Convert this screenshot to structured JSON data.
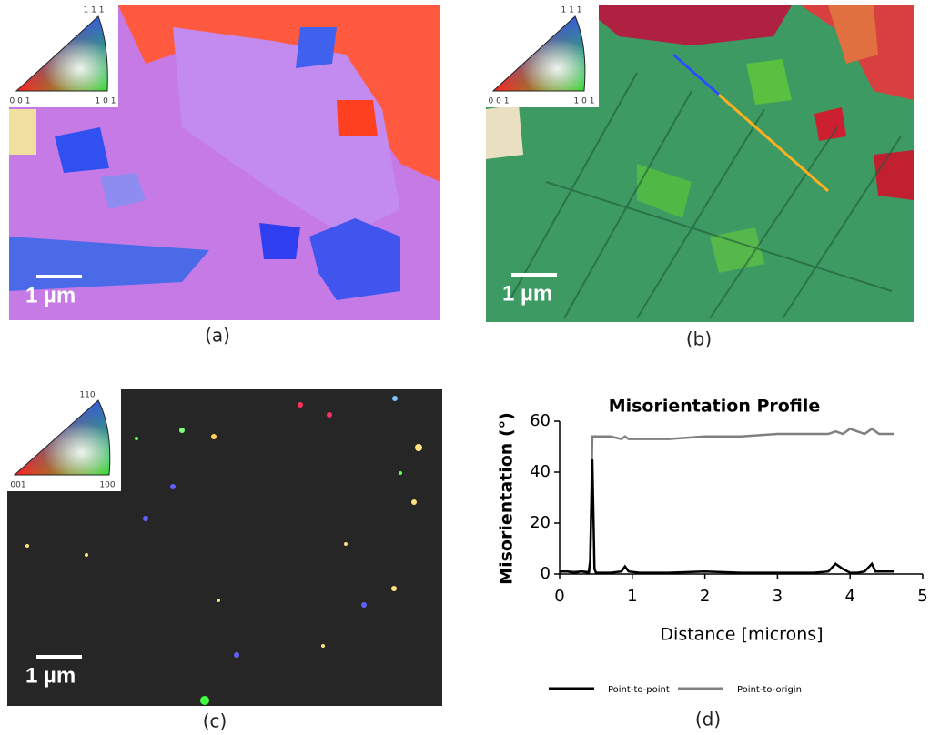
{
  "panels": [
    {
      "label": "(a)",
      "scale_bar": "1 µm",
      "legend": [
        "1 1 1",
        "0 0 1",
        "1 0 1"
      ]
    },
    {
      "label": "(b)",
      "scale_bar": "1 µm",
      "legend": [
        "1 1 1",
        "0 0 1",
        "1 0 1"
      ]
    },
    {
      "label": "(c)",
      "scale_bar": "1 µm",
      "legend": [
        "110",
        "001",
        "100"
      ]
    },
    {
      "label": "(d)"
    }
  ],
  "chart_data": {
    "type": "line",
    "title": "Misorientation Profile",
    "x_label": "Distance [microns]",
    "y_label": "Misorientation (°)",
    "x": [
      0,
      0.1,
      0.2,
      0.3,
      0.4,
      0.42,
      0.45,
      0.48,
      0.5,
      0.7,
      0.85,
      0.9,
      0.95,
      1.1,
      1.5,
      2,
      2.5,
      3,
      3.5,
      3.7,
      3.8,
      3.9,
      4,
      4.1,
      4.2,
      4.3,
      4.35,
      4.4,
      4.5,
      4.6
    ],
    "series": [
      {
        "name": "Point-to-point",
        "color": "#000000",
        "values": [
          1,
          1,
          0.5,
          1,
          0.5,
          5,
          45,
          2,
          0.5,
          0.5,
          1,
          3,
          1,
          0.5,
          0.5,
          1,
          0.5,
          0.5,
          0.5,
          1,
          4,
          2,
          0.5,
          0.5,
          1,
          4,
          1,
          1,
          1,
          1
        ]
      },
      {
        "name": "Point-to-origin",
        "color": "#808080",
        "values": [
          1,
          1,
          1,
          1,
          1,
          1,
          54,
          54,
          54,
          54,
          53,
          54,
          53,
          53,
          53,
          54,
          54,
          55,
          55,
          55,
          56,
          55,
          57,
          56,
          55,
          57,
          56,
          55,
          55,
          55
        ]
      }
    ],
    "xlim": [
      0,
      5
    ],
    "xticks": [
      0,
      1,
      2,
      3,
      4,
      5
    ],
    "ylim": [
      0,
      60
    ],
    "yticks": [
      0,
      20,
      40,
      60
    ],
    "legend": "bottom"
  }
}
